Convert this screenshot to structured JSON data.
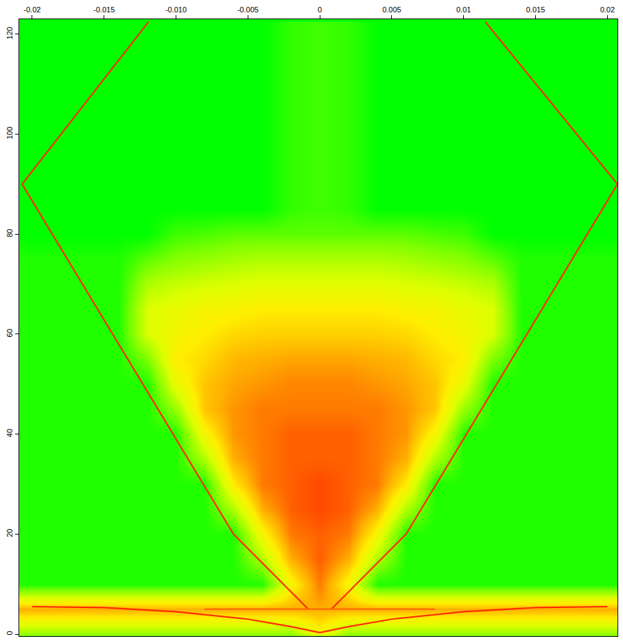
{
  "chart_data": {
    "type": "heatmap",
    "xlim": [
      -0.0209,
      0.0207
    ],
    "ylim": [
      -0.4,
      123
    ],
    "xticks": [
      -0.02,
      -0.015,
      {
        "value": -0.01,
        "label": "-0.010"
      },
      -0.005,
      0,
      0.005,
      0.01,
      0.015,
      0.02
    ],
    "yticks": [
      0,
      20,
      40,
      60,
      80,
      100,
      120
    ],
    "grid": false,
    "heatmap": {
      "x": [
        -0.02,
        -0.018,
        -0.016,
        -0.014,
        -0.012,
        -0.01,
        -0.008,
        -0.006,
        -0.004,
        -0.002,
        0,
        0.002,
        0.004,
        0.006,
        0.008,
        0.01,
        0.012,
        0.014,
        0.016,
        0.018,
        0.02
      ],
      "y": [
        0,
        5,
        10,
        15,
        20,
        25,
        30,
        35,
        40,
        45,
        50,
        55,
        60,
        65,
        70,
        75,
        80,
        85,
        90,
        95,
        100,
        105,
        110,
        115,
        120
      ],
      "zlim": [
        0,
        1
      ],
      "values": [
        [
          0.25,
          0.25,
          0.25,
          0.25,
          0.25,
          0.25,
          0.25,
          0.25,
          0.25,
          0.25,
          0.5,
          0.25,
          0.25,
          0.25,
          0.25,
          0.25,
          0.25,
          0.25,
          0.25,
          0.25,
          0.25
        ],
        [
          0.7,
          0.7,
          0.7,
          0.7,
          0.7,
          0.7,
          0.7,
          0.7,
          0.7,
          0.7,
          0.7,
          0.7,
          0.7,
          0.7,
          0.7,
          0.7,
          0.7,
          0.7,
          0.7,
          0.7,
          0.7
        ],
        [
          0.05,
          0.05,
          0.05,
          0.05,
          0.05,
          0.05,
          0.05,
          0.05,
          0.05,
          0.5,
          0.8,
          0.5,
          0.05,
          0.05,
          0.05,
          0.05,
          0.05,
          0.05,
          0.05,
          0.05,
          0.05
        ],
        [
          0.05,
          0.05,
          0.05,
          0.05,
          0.05,
          0.05,
          0.05,
          0.05,
          0.3,
          0.7,
          0.85,
          0.7,
          0.3,
          0.05,
          0.05,
          0.05,
          0.05,
          0.05,
          0.05,
          0.05,
          0.05
        ],
        [
          0.05,
          0.05,
          0.05,
          0.05,
          0.05,
          0.05,
          0.05,
          0.05,
          0.5,
          0.8,
          0.85,
          0.8,
          0.5,
          0.05,
          0.05,
          0.05,
          0.05,
          0.05,
          0.05,
          0.05,
          0.05
        ],
        [
          0.05,
          0.05,
          0.05,
          0.05,
          0.05,
          0.05,
          0.05,
          0.3,
          0.7,
          0.85,
          0.9,
          0.85,
          0.7,
          0.3,
          0.05,
          0.05,
          0.05,
          0.05,
          0.05,
          0.05,
          0.05
        ],
        [
          0.05,
          0.05,
          0.05,
          0.05,
          0.05,
          0.05,
          0.05,
          0.55,
          0.8,
          0.85,
          0.9,
          0.85,
          0.8,
          0.55,
          0.05,
          0.05,
          0.05,
          0.05,
          0.05,
          0.05,
          0.05
        ],
        [
          0.05,
          0.05,
          0.05,
          0.05,
          0.05,
          0.05,
          0.3,
          0.7,
          0.8,
          0.85,
          0.85,
          0.85,
          0.8,
          0.7,
          0.3,
          0.05,
          0.05,
          0.05,
          0.05,
          0.05,
          0.05
        ],
        [
          0.05,
          0.05,
          0.05,
          0.05,
          0.05,
          0.05,
          0.5,
          0.75,
          0.8,
          0.85,
          0.85,
          0.85,
          0.8,
          0.75,
          0.5,
          0.05,
          0.05,
          0.05,
          0.05,
          0.05,
          0.05
        ],
        [
          0.05,
          0.05,
          0.05,
          0.05,
          0.05,
          0.25,
          0.65,
          0.75,
          0.8,
          0.8,
          0.8,
          0.8,
          0.8,
          0.75,
          0.65,
          0.25,
          0.05,
          0.05,
          0.05,
          0.05,
          0.05
        ],
        [
          0.05,
          0.05,
          0.05,
          0.05,
          0.05,
          0.45,
          0.65,
          0.72,
          0.75,
          0.78,
          0.78,
          0.78,
          0.75,
          0.72,
          0.65,
          0.45,
          0.05,
          0.05,
          0.05,
          0.05,
          0.05
        ],
        [
          0.05,
          0.05,
          0.05,
          0.05,
          0.2,
          0.55,
          0.6,
          0.68,
          0.7,
          0.72,
          0.72,
          0.72,
          0.7,
          0.68,
          0.6,
          0.55,
          0.2,
          0.05,
          0.05,
          0.05,
          0.05
        ],
        [
          0.05,
          0.05,
          0.05,
          0.05,
          0.4,
          0.5,
          0.55,
          0.6,
          0.62,
          0.62,
          0.62,
          0.62,
          0.62,
          0.6,
          0.55,
          0.5,
          0.4,
          0.05,
          0.05,
          0.05,
          0.05
        ],
        [
          0.05,
          0.05,
          0.05,
          0.05,
          0.4,
          0.45,
          0.5,
          0.52,
          0.55,
          0.55,
          0.55,
          0.55,
          0.55,
          0.52,
          0.5,
          0.45,
          0.4,
          0.05,
          0.05,
          0.05,
          0.05
        ],
        [
          0.05,
          0.05,
          0.05,
          0.05,
          0.3,
          0.35,
          0.38,
          0.4,
          0.42,
          0.42,
          0.42,
          0.42,
          0.42,
          0.4,
          0.38,
          0.35,
          0.3,
          0.05,
          0.05,
          0.05,
          0.05
        ],
        [
          0.05,
          0.05,
          0.05,
          0.05,
          0.15,
          0.22,
          0.25,
          0.28,
          0.3,
          0.3,
          0.3,
          0.3,
          0.3,
          0.28,
          0.25,
          0.22,
          0.15,
          0.05,
          0.05,
          0.05,
          0.05
        ],
        [
          0,
          0,
          0,
          0,
          0,
          0.1,
          0.12,
          0.15,
          0.15,
          0.15,
          0.15,
          0.15,
          0.15,
          0.15,
          0.12,
          0.1,
          0,
          0,
          0,
          0,
          0
        ],
        [
          0,
          0,
          0,
          0,
          0,
          0,
          0,
          0,
          0,
          0.08,
          0.1,
          0.08,
          0,
          0,
          0,
          0,
          0,
          0,
          0,
          0,
          0
        ],
        [
          0,
          0,
          0,
          0,
          0,
          0,
          0,
          0,
          0,
          0.08,
          0.1,
          0.08,
          0,
          0,
          0,
          0,
          0,
          0,
          0,
          0,
          0
        ],
        [
          0,
          0,
          0,
          0,
          0,
          0,
          0,
          0,
          0,
          0.08,
          0.1,
          0.08,
          0,
          0,
          0,
          0,
          0,
          0,
          0,
          0,
          0
        ],
        [
          0,
          0,
          0,
          0,
          0,
          0,
          0,
          0,
          0,
          0.08,
          0.1,
          0.08,
          0,
          0,
          0,
          0,
          0,
          0,
          0,
          0,
          0
        ],
        [
          0,
          0,
          0,
          0,
          0,
          0,
          0,
          0,
          0,
          0.08,
          0.1,
          0.08,
          0,
          0,
          0,
          0,
          0,
          0,
          0,
          0,
          0
        ],
        [
          0,
          0,
          0,
          0,
          0,
          0,
          0,
          0,
          0,
          0.08,
          0.1,
          0.08,
          0,
          0,
          0,
          0,
          0,
          0,
          0,
          0,
          0
        ],
        [
          0,
          0,
          0,
          0,
          0,
          0,
          0,
          0,
          0,
          0.08,
          0.1,
          0.08,
          0,
          0,
          0,
          0,
          0,
          0,
          0,
          0,
          0
        ],
        [
          0,
          0,
          0,
          0,
          0,
          0,
          0,
          0,
          0,
          0.08,
          0.1,
          0.08,
          0,
          0,
          0,
          0,
          0,
          0,
          0,
          0,
          0
        ]
      ]
    },
    "series": [
      {
        "type": "line",
        "color": "#ff2a00",
        "line_style": "solid",
        "x": [
          -0.0008,
          -0.006,
          -0.0102,
          -0.0207,
          -0.0119
        ],
        "values": [
          5,
          20,
          40,
          90,
          122.5
        ]
      },
      {
        "type": "line",
        "color": "#ff2a00",
        "line_style": "solid",
        "x": [
          0.0008,
          0.006,
          0.0102,
          0.0207,
          0.0115
        ],
        "values": [
          5,
          20,
          40,
          90,
          122.5
        ]
      },
      {
        "type": "line",
        "color": "#ff2a00",
        "line_style": "solid",
        "x": [
          -0.02,
          -0.015,
          -0.01,
          -0.005,
          -0.002,
          0,
          0.002,
          0.005,
          0.01,
          0.015,
          0.02
        ],
        "values": [
          5.5,
          5.3,
          4.5,
          3,
          1.5,
          0.3,
          1.5,
          3,
          4.5,
          5.3,
          5.5
        ]
      },
      {
        "type": "line",
        "color": "#ff6a00",
        "line_style": "solid",
        "x": [
          -0.008,
          0.008
        ],
        "values": [
          5,
          5
        ]
      }
    ]
  }
}
